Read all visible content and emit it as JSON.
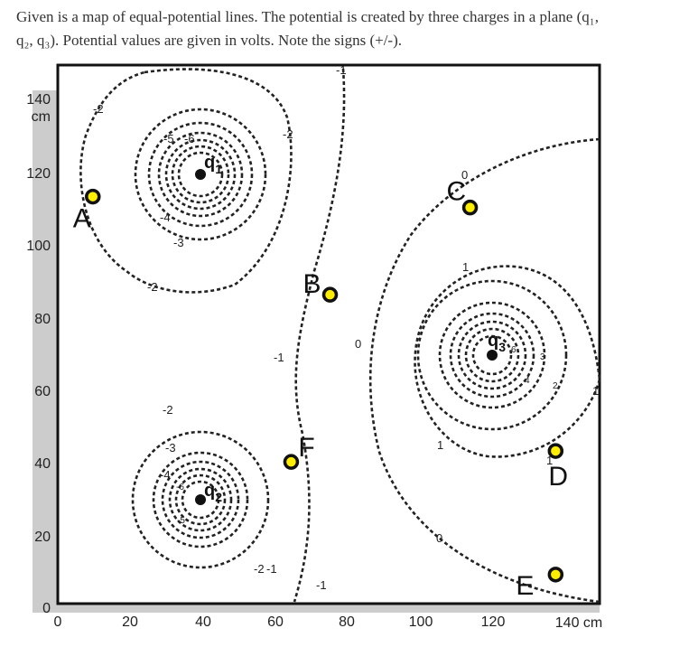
{
  "prompt": {
    "line1": "Given is a map of equal-potential lines.  The potential is created by three charges in a plane (q₁,",
    "line2": "q₂, q₃).  Potential values are given in volts.  Note the signs (+/-)."
  },
  "axes": {
    "x_ticks": [
      "0",
      "20",
      "40",
      "60",
      "80",
      "100",
      "120"
    ],
    "x_end": "140 cm",
    "y_ticks": [
      "0",
      "20",
      "40",
      "60",
      "80",
      "100",
      "120"
    ],
    "y_end_value": "140",
    "y_end_unit": "cm"
  },
  "charges": [
    {
      "name": "q",
      "sub": "1",
      "x": 40,
      "y": 120
    },
    {
      "name": "q",
      "sub": "2",
      "x": 40,
      "y": 30
    },
    {
      "name": "q",
      "sub": "3",
      "x": 120,
      "y": 70
    }
  ],
  "points": [
    {
      "label": "A",
      "x": 9,
      "y": 112
    },
    {
      "label": "B",
      "x": 70,
      "y": 85
    },
    {
      "label": "C",
      "x": 106,
      "y": 109
    },
    {
      "label": "D",
      "x": 128,
      "y": 42
    },
    {
      "label": "E",
      "x": 128,
      "y": 8
    },
    {
      "label": "F",
      "x": 60,
      "y": 39
    }
  ],
  "potential_labels": [
    "-2",
    "-5",
    "-6",
    "-4",
    "-3",
    "-2",
    "-2",
    "-1",
    "-1",
    "-1",
    "-2",
    "-3",
    "-4",
    "-6",
    "-5",
    "-2",
    "-1",
    "0",
    "0",
    "0",
    "1",
    "1",
    "1",
    "1",
    "2",
    "3",
    "4",
    "6"
  ],
  "colors": {
    "point_fill": "#ffee00",
    "line": "#222222",
    "axis_shade": "#cccccc"
  }
}
